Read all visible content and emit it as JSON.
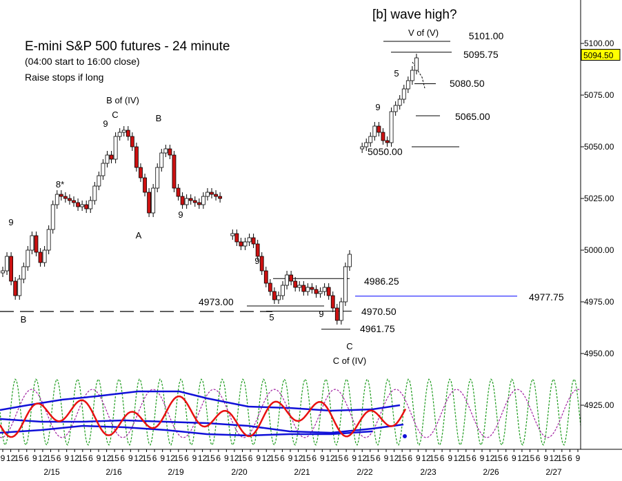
{
  "chart_data": {
    "type": "candlestick",
    "title": "E-mini S&P 500 futures - 24 minute",
    "subtitle": "(04:00 start to 16:00 close)",
    "note": "Raise stops if long",
    "top_label": "[b] wave high?",
    "ylim": [
      4905,
      5120
    ],
    "yticks": [
      5100,
      5075,
      5050,
      5025,
      5000,
      4975,
      4950,
      4925
    ],
    "ytick_labels": [
      "5100.00",
      "5075.00",
      "5050.00",
      "5025.00",
      "5000.00",
      "4975.00",
      "4950.00",
      "4925.00"
    ],
    "current_price": "5094.50",
    "xticks": [
      "9",
      "12",
      "15",
      "6",
      "9",
      "12",
      "15",
      "6",
      "9",
      "12",
      "15",
      "6",
      "9",
      "12",
      "15",
      "6",
      "9",
      "12",
      "15",
      "6",
      "9",
      "12",
      "15",
      "6",
      "9",
      "12",
      "15",
      "6",
      "9",
      "12",
      "15",
      "6",
      "9",
      "12",
      "15",
      "6",
      "9",
      "12",
      "15",
      "6",
      "9",
      "12",
      "15",
      "6",
      "9",
      "12",
      "15",
      "6",
      "9",
      "12",
      "15",
      "6",
      "9",
      "12",
      "15",
      "6",
      "9",
      "12",
      "15",
      "6",
      "9",
      "12",
      "15",
      "6",
      "9",
      "12",
      "15",
      "6",
      "9",
      "12",
      "15",
      "6",
      "9"
    ],
    "date_labels": [
      "2/15",
      "2/16",
      "2/19",
      "2/20",
      "2/21",
      "2/22",
      "2/23",
      "2/26",
      "2/27"
    ],
    "price_levels": [
      {
        "label": "5101.00",
        "value": 5101.0
      },
      {
        "label": "5095.75",
        "value": 5095.75
      },
      {
        "label": "5080.50",
        "value": 5080.5
      },
      {
        "label": "5065.00",
        "value": 5065.0
      },
      {
        "label": "5050.00",
        "value": 5050.0
      },
      {
        "label": "4986.25",
        "value": 4986.25
      },
      {
        "label": "4977.75",
        "value": 4977.75,
        "color": "#0000ff"
      },
      {
        "label": "4973.00",
        "value": 4973.0
      },
      {
        "label": "4970.50",
        "value": 4970.5
      },
      {
        "label": "4961.75",
        "value": 4961.75
      }
    ],
    "wave_labels": [
      "B of (IV)",
      "C",
      "B",
      "A",
      "B",
      "C",
      "C of (IV)",
      "V of (V)",
      "5",
      "5"
    ],
    "count_labels": [
      {
        "text": "9",
        "color": "#e02020"
      },
      {
        "text": "8*",
        "color": "#e02020"
      },
      {
        "text": "9",
        "color": "#e02020"
      },
      {
        "text": "9",
        "color": "#e02020"
      },
      {
        "text": "9",
        "color": "#1a1aff"
      },
      {
        "text": "9",
        "color": "#1a1aff"
      },
      {
        "text": "9",
        "color": "#1a1aff"
      }
    ],
    "price_series": [
      4990,
      4997,
      4985,
      4978,
      4986,
      4992,
      5000,
      5007,
      4999,
      4994,
      5000,
      5010,
      5022,
      5027,
      5026,
      5025,
      5024,
      5023,
      5021,
      5022,
      5020,
      5024,
      5031,
      5036,
      5042,
      5046,
      5044,
      5055,
      5057,
      5058,
      5055,
      5050,
      5040,
      5035,
      5028,
      5018,
      5030,
      5040,
      5047,
      5049,
      5046,
      5030,
      5026,
      5022,
      5025,
      5024,
      5023,
      5022,
      5026,
      5028,
      5027,
      5026,
      5025,
      null,
      null,
      5008,
      5004,
      5002,
      5004,
      5006,
      5003,
      4997,
      4990,
      4984,
      4980,
      4976,
      4978,
      4983,
      4988,
      4985,
      4982,
      4983,
      4980,
      4982,
      4981,
      4979,
      4980,
      4982,
      4978,
      4972,
      4966,
      4975,
      4992,
      4998,
      null,
      null,
      5050,
      5052,
      5055,
      5060,
      5057,
      5053,
      5052,
      5067,
      5070,
      5073,
      5078,
      5082,
      5087,
      5093
    ]
  },
  "colors": {
    "up_candle": "#ffffff",
    "down_candle": "#cc1111",
    "level_line": "#000000",
    "projection_line": "#0000ff",
    "oscillator_red": "#e81010",
    "oscillator_blue": "#1010d8",
    "cycle_green": "#1a9a1a",
    "cycle_purple": "#a020a0",
    "price_box": "#ffff00"
  }
}
